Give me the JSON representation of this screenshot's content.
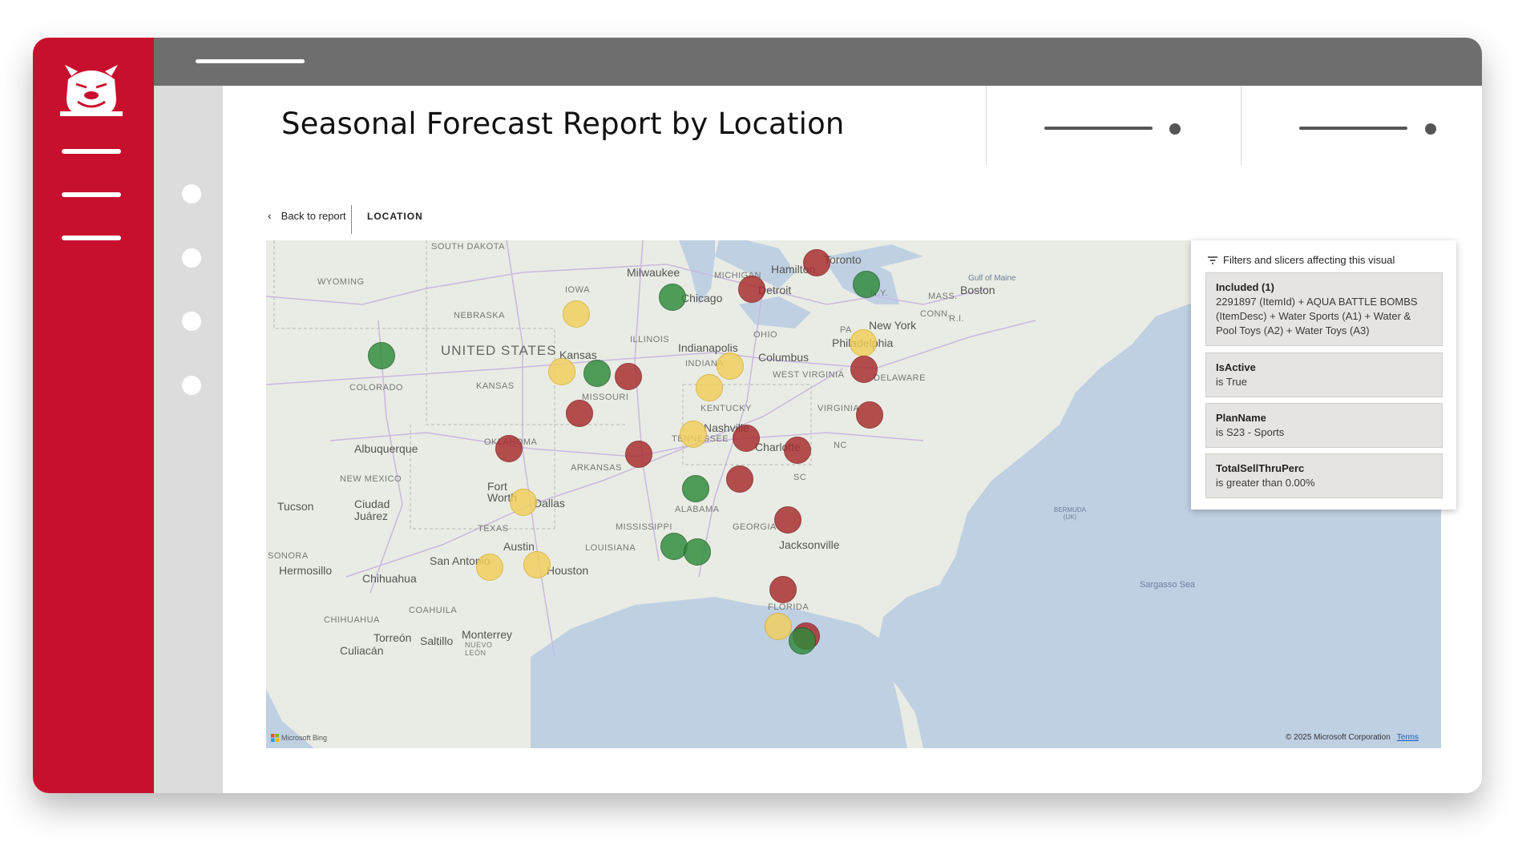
{
  "header": {
    "title": "Seasonal Forecast Report by Location"
  },
  "toolbar": {
    "back_label": "Back to report",
    "location_label": "LOCATION"
  },
  "filters_panel": {
    "heading": "Filters and slicers affecting this visual",
    "items": [
      {
        "title": "Included (1)",
        "detail": "2291897 (ItemId) + AQUA BATTLE BOMBS (ItemDesc) + Water Sports (A1) + Water & Pool Toys (A2) + Water Toys (A3)"
      },
      {
        "title": "IsActive",
        "detail": "is True"
      },
      {
        "title": "PlanName",
        "detail": "is S23 - Sports"
      },
      {
        "title": "TotalSellThruPerc",
        "detail": "is greater than 0.00%"
      }
    ]
  },
  "map": {
    "labels": {
      "south_dakota": "SOUTH DAKOTA",
      "wyoming": "WYOMING",
      "nebraska": "NEBRASKA",
      "iowa": "IOWA",
      "united_states": "UNITED STATES",
      "colorado": "COLORADO",
      "kansas_state": "KANSAS",
      "kansas_city": "Kansas",
      "missouri": "MISSOURI",
      "illinois": "ILLINOIS",
      "indiana": "INDIANA",
      "indianapolis": "Indianapolis",
      "ohio": "OHIO",
      "columbus": "Columbus",
      "michigan": "MICHIGAN",
      "milwaukee": "Milwaukee",
      "chicago": "Chicago",
      "detroit": "Detroit",
      "hamilton": "Hamilton",
      "toronto": "Toronto",
      "new_york": "New York",
      "ny": "N.Y.",
      "pa": "PA",
      "philadelphia": "Philadelphia",
      "delaware": "DELAWARE",
      "west_virginia": "WEST VIRGINIA",
      "virginia": "VIRGINIA",
      "kentucky": "KENTUCKY",
      "nashville": "Nashville",
      "tennessee": "TENNESSEE",
      "charlotte": "Charlotte",
      "nc": "NC",
      "sc": "SC",
      "oklahoma": "OKLAHOMA",
      "arkansas": "ARKANSAS",
      "albuquerque": "Albuquerque",
      "new_mexico": "NEW MEXICO",
      "fort_worth": "Fort Worth",
      "dallas": "Dallas",
      "alabama": "ALABAMA",
      "georgia": "GEORGIA",
      "mississippi": "MISSISSIPPI",
      "louisiana": "LOUISIANA",
      "texas": "TEXAS",
      "austin": "Austin",
      "san_antonio": "San Antonio",
      "houston": "Houston",
      "jacksonville": "Jacksonville",
      "florida": "FLORIDA",
      "tucson": "Tucson",
      "ciudad_juarez": "Ciudad Juárez",
      "sonora": "SONORA",
      "hermosillo": "Hermosillo",
      "chihuahua": "Chihuahua",
      "chihuahua_state": "CHIHUAHUA",
      "coahuila": "COAHUILA",
      "torreon": "Torreón",
      "saltillo": "Saltillo",
      "monterrey": "Monterrey",
      "nuevo_leon": "NUEVO LEÓN",
      "culiacan": "Culiacán",
      "mass": "MASS.",
      "conn": "CONN.",
      "ri": "R.I.",
      "boston": "Boston",
      "gulf_of_maine": "Gulf of Maine",
      "bermuda": "BERMUDA (UK)",
      "sargasso": "Sargasso Sea"
    },
    "bing_label": "Microsoft Bing",
    "copyright": "© 2025 Microsoft Corporation",
    "terms_label": "Terms",
    "marker_colors": {
      "red": "#a82b2b",
      "yellow": "#f2cf5b",
      "green": "#2e8a3a"
    }
  }
}
